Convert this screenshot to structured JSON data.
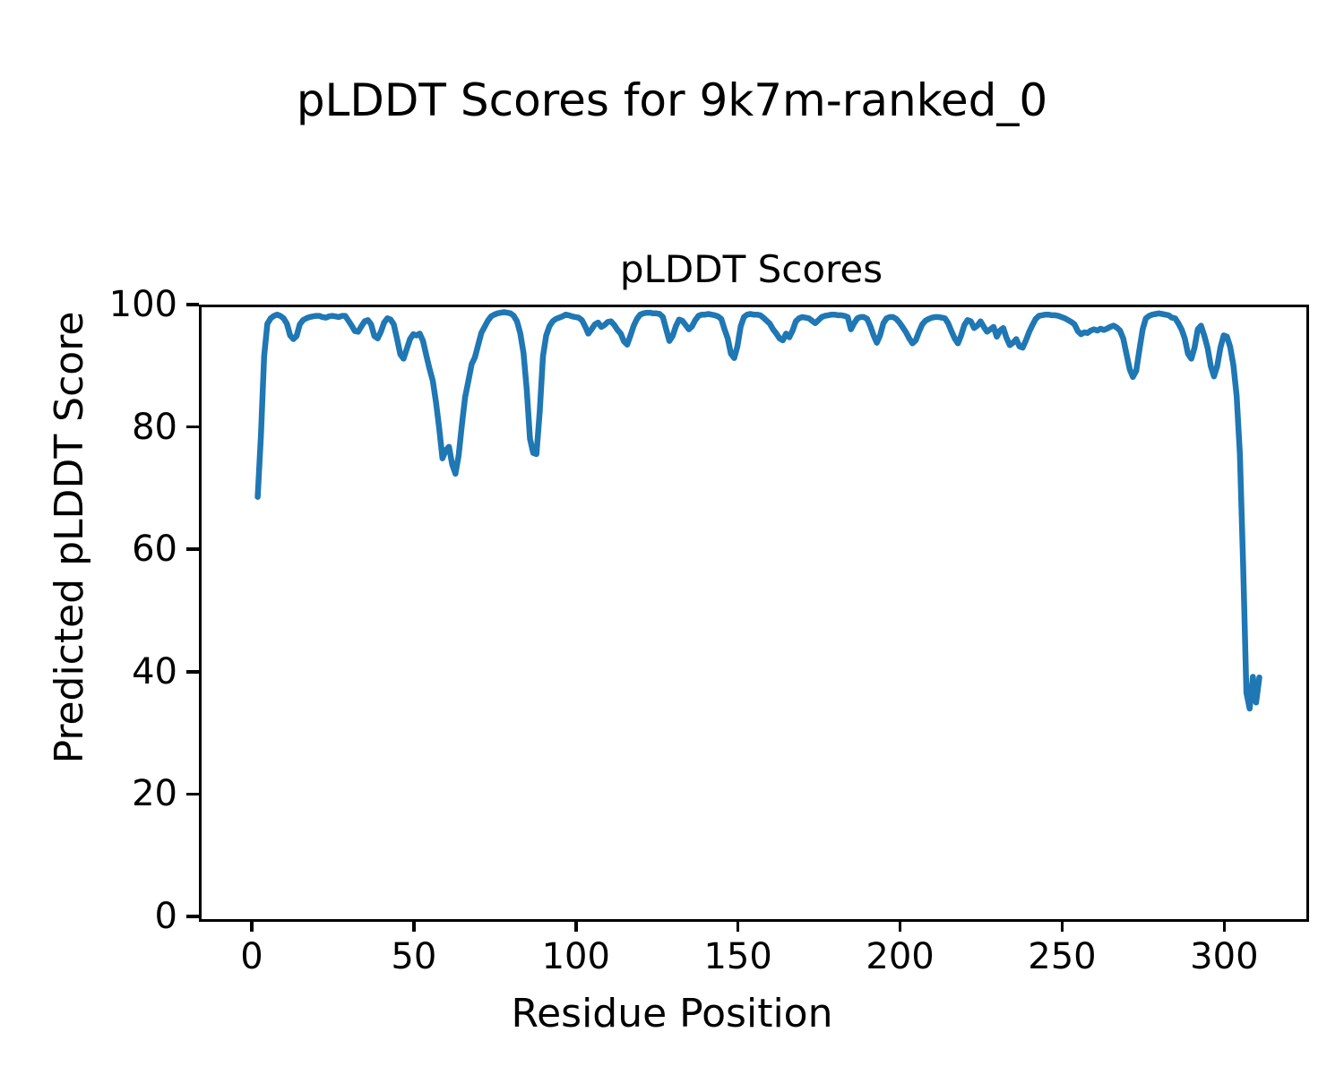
{
  "figure": {
    "suptitle": "pLDDT Scores for 9k7m-ranked_0",
    "background_color": "#ffffff",
    "text_color": "#000000"
  },
  "chart_data": {
    "type": "line",
    "title": "pLDDT Scores",
    "xlabel": "Residue Position",
    "ylabel": "Predicted pLDDT Score",
    "legend": null,
    "grid": false,
    "xlim": [
      -16.3,
      324.5
    ],
    "ylim": [
      0,
      100
    ],
    "x_ticks": [
      0,
      50,
      100,
      150,
      200,
      250,
      300
    ],
    "y_ticks": [
      0,
      20,
      40,
      60,
      80,
      100
    ],
    "line_color": "#1f77b4",
    "line_width": 6.5,
    "series": [
      {
        "name": "pLDDT",
        "x_start": 1,
        "x_step": 1,
        "values": [
          69.0,
          79.0,
          92.0,
          97.3,
          98.2,
          98.6,
          98.8,
          98.6,
          98.2,
          97.3,
          95.4,
          94.8,
          95.3,
          97.2,
          97.9,
          98.2,
          98.4,
          98.5,
          98.6,
          98.6,
          98.4,
          98.3,
          98.5,
          98.6,
          98.5,
          98.4,
          98.6,
          98.6,
          97.8,
          97.0,
          96.1,
          96.0,
          96.9,
          97.7,
          97.9,
          97.2,
          95.3,
          94.9,
          96.0,
          97.5,
          98.2,
          98.0,
          97.2,
          94.8,
          92.3,
          91.6,
          93.2,
          94.8,
          95.6,
          95.4,
          95.7,
          94.5,
          92.2,
          90.0,
          88.0,
          84.5,
          80.2,
          75.3,
          76.6,
          77.2,
          74.3,
          72.8,
          75.8,
          80.8,
          85.3,
          88.0,
          90.7,
          91.8,
          93.8,
          95.8,
          96.8,
          97.8,
          98.5,
          98.8,
          99.0,
          99.1,
          99.2,
          99.1,
          99.0,
          98.6,
          97.7,
          95.8,
          92.5,
          86.5,
          78.5,
          76.2,
          76.0,
          83.0,
          92.0,
          95.4,
          96.9,
          97.7,
          98.1,
          98.3,
          98.5,
          98.8,
          98.7,
          98.5,
          98.4,
          98.3,
          97.9,
          96.9,
          95.7,
          96.4,
          97.2,
          97.5,
          96.8,
          97.1,
          97.6,
          97.7,
          97.1,
          96.3,
          95.7,
          94.4,
          93.9,
          95.4,
          97.0,
          98.1,
          98.8,
          99.0,
          99.1,
          99.1,
          99.0,
          99.0,
          98.9,
          98.4,
          96.4,
          94.5,
          95.3,
          96.9,
          98.0,
          97.8,
          97.1,
          96.4,
          96.9,
          97.9,
          98.6,
          98.8,
          98.8,
          98.9,
          98.8,
          98.7,
          98.5,
          98.1,
          96.4,
          94.9,
          92.4,
          91.7,
          93.6,
          96.9,
          98.4,
          98.8,
          98.9,
          98.8,
          98.8,
          98.7,
          98.3,
          97.8,
          97.3,
          96.4,
          95.7,
          94.9,
          94.6,
          95.7,
          95.1,
          96.2,
          97.7,
          98.2,
          98.4,
          98.3,
          98.2,
          97.8,
          97.4,
          97.9,
          98.4,
          98.6,
          98.7,
          98.8,
          98.8,
          98.7,
          98.7,
          98.6,
          98.4,
          96.4,
          97.4,
          98.2,
          98.4,
          98.4,
          98.1,
          96.9,
          95.4,
          94.2,
          95.4,
          97.4,
          98.2,
          98.4,
          98.4,
          98.1,
          97.5,
          96.7,
          95.9,
          94.9,
          94.1,
          94.6,
          96.0,
          97.2,
          97.8,
          98.1,
          98.3,
          98.4,
          98.4,
          98.3,
          98.2,
          97.4,
          96.1,
          94.9,
          94.1,
          95.4,
          97.1,
          97.9,
          97.7,
          96.6,
          97.0,
          97.7,
          96.8,
          96.0,
          96.4,
          96.8,
          95.2,
          96.2,
          96.6,
          95.0,
          93.8,
          94.2,
          94.8,
          93.6,
          93.4,
          94.6,
          96.0,
          97.1,
          98.1,
          98.6,
          98.7,
          98.8,
          98.8,
          98.7,
          98.7,
          98.6,
          98.4,
          98.2,
          97.9,
          97.6,
          97.2,
          96.1,
          95.6,
          95.9,
          95.8,
          96.2,
          96.4,
          96.2,
          96.5,
          96.3,
          96.5,
          96.8,
          97.0,
          96.7,
          96.2,
          94.9,
          92.4,
          89.9,
          88.6,
          89.6,
          93.1,
          96.4,
          98.2,
          98.6,
          98.8,
          98.9,
          99.0,
          98.9,
          98.8,
          98.7,
          98.3,
          98.2,
          97.4,
          96.4,
          94.9,
          92.4,
          91.6,
          93.4,
          96.4,
          97.0,
          95.4,
          93.4,
          90.4,
          88.7,
          90.4,
          93.4,
          95.4,
          95.2,
          93.5,
          90.5,
          85.5,
          76.0,
          58.0,
          37.0,
          34.4,
          39.6,
          35.4,
          39.5
        ]
      }
    ]
  }
}
